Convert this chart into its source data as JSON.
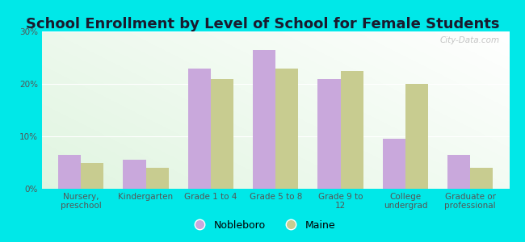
{
  "title": "School Enrollment by Level of School for Female Students",
  "categories": [
    "Nursery,\npreschool",
    "Kindergarten",
    "Grade 1 to 4",
    "Grade 5 to 8",
    "Grade 9 to\n12",
    "College\nundergrad",
    "Graduate or\nprofessional"
  ],
  "nobleboro": [
    6.5,
    5.5,
    23.0,
    26.5,
    21.0,
    9.5,
    6.5
  ],
  "maine": [
    5.0,
    4.0,
    21.0,
    23.0,
    22.5,
    20.0,
    4.0
  ],
  "nobleboro_color": "#c9a8dc",
  "maine_color": "#c8cc90",
  "background_color": "#00e8e8",
  "plot_bg_topleft": "#e8f5e0",
  "plot_bg_bottomright": "#ffffff",
  "ylim": [
    0,
    30
  ],
  "yticks": [
    0,
    10,
    20,
    30
  ],
  "ytick_labels": [
    "0%",
    "10%",
    "20%",
    "30%"
  ],
  "bar_width": 0.35,
  "title_fontsize": 13,
  "tick_fontsize": 7.5,
  "legend_fontsize": 9,
  "watermark": "City-Data.com"
}
